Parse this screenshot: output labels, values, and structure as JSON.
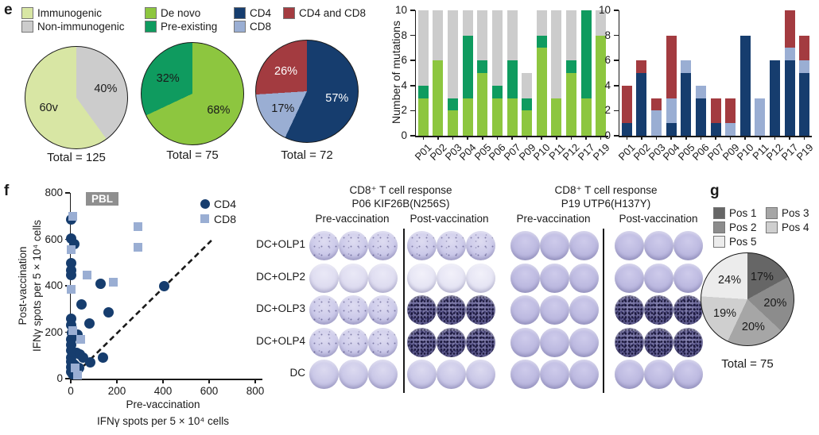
{
  "panels": {
    "e": "e",
    "f": "f",
    "g": "g"
  },
  "colors": {
    "immunogenic": "#d8e6a4",
    "non_immunogenic": "#cccccc",
    "de_novo": "#8dc63f",
    "pre_existing": "#0f9b5f",
    "cd4": "#163d6e",
    "cd8": "#9aaed3",
    "cd4_cd8": "#a33b40",
    "pos1": "#666666",
    "pos2": "#8c8c8c",
    "pos3": "#a6a6a6",
    "pos4": "#cfcfcf",
    "pos5": "#ececec",
    "axis": "#1a1a1a",
    "pbl_badge": "#8f8f8f"
  },
  "legend_e": {
    "columns": [
      [
        {
          "label": "Immunogenic",
          "color_key": "immunogenic"
        },
        {
          "label": "Non-immunogenic",
          "color_key": "non_immunogenic"
        }
      ],
      [
        {
          "label": "De novo",
          "color_key": "de_novo"
        },
        {
          "label": "Pre-existing",
          "color_key": "pre_existing"
        }
      ],
      [
        {
          "label": "CD4",
          "color_key": "cd4"
        },
        {
          "label": "CD8",
          "color_key": "cd8"
        }
      ],
      [
        {
          "label": "CD4 and CD8",
          "color_key": "cd4_cd8"
        }
      ]
    ]
  },
  "chart_data": {
    "pie_immunogenic": {
      "type": "pie",
      "total_label": "Total = 125",
      "slices": [
        {
          "label": "Non-immunogenic",
          "value": 40,
          "display": "40%",
          "color_key": "non_immunogenic",
          "text_color": "#1a1a1a"
        },
        {
          "label": "Immunogenic",
          "value": 60,
          "display": "60v",
          "color_key": "immunogenic",
          "text_color": "#1a1a1a"
        }
      ]
    },
    "pie_origin": {
      "type": "pie",
      "total_label": "Total = 75",
      "slices": [
        {
          "label": "De novo",
          "value": 68,
          "display": "68%",
          "color_key": "de_novo",
          "text_color": "#1a1a1a"
        },
        {
          "label": "Pre-existing",
          "value": 32,
          "display": "32%",
          "color_key": "pre_existing",
          "text_color": "#1a1a1a"
        }
      ]
    },
    "pie_tcell": {
      "type": "pie",
      "total_label": "Total = 72",
      "slices": [
        {
          "label": "CD4",
          "value": 57,
          "display": "57%",
          "color_key": "cd4",
          "text_color": "#ffffff"
        },
        {
          "label": "CD8",
          "value": 17,
          "display": "17%",
          "color_key": "cd8",
          "text_color": "#1a1a1a"
        },
        {
          "label": "CD4 and CD8",
          "value": 26,
          "display": "26%",
          "color_key": "cd4_cd8",
          "text_color": "#ffffff"
        }
      ]
    },
    "bar_left": {
      "type": "bar",
      "stacked": true,
      "ylabel": "Number of mutations",
      "ylim": [
        0,
        10
      ],
      "yticks": [
        0,
        2,
        4,
        6,
        8,
        10
      ],
      "categories": [
        "P01",
        "P02",
        "P03",
        "P04",
        "P05",
        "P06",
        "P07",
        "P09",
        "P10",
        "P11",
        "P12",
        "P17",
        "P19"
      ],
      "series": [
        {
          "name": "De novo",
          "color_key": "de_novo",
          "values": [
            3,
            6,
            2,
            3,
            5,
            3,
            3,
            2,
            7,
            3,
            5,
            3,
            8
          ]
        },
        {
          "name": "Pre-existing",
          "color_key": "pre_existing",
          "values": [
            1,
            0,
            1,
            5,
            1,
            1,
            3,
            1,
            1,
            0,
            1,
            7,
            0
          ]
        },
        {
          "name": "Non-immunogenic",
          "color_key": "non_immunogenic",
          "values": [
            6,
            4,
            7,
            2,
            4,
            6,
            4,
            2,
            2,
            7,
            4,
            0,
            2
          ]
        }
      ]
    },
    "bar_right": {
      "type": "bar",
      "stacked": true,
      "ylabel": "",
      "ylim": [
        0,
        10
      ],
      "yticks": [
        0,
        2,
        4,
        6,
        8,
        10
      ],
      "categories": [
        "P01",
        "P02",
        "P03",
        "P04",
        "P05",
        "P06",
        "P07",
        "P09",
        "P10",
        "P11",
        "P12",
        "P17",
        "P19"
      ],
      "series": [
        {
          "name": "CD4",
          "color_key": "cd4",
          "values": [
            1,
            5,
            0,
            1,
            5,
            3,
            1,
            0,
            8,
            0,
            6,
            6,
            5
          ]
        },
        {
          "name": "CD8",
          "color_key": "cd8",
          "values": [
            0,
            0,
            2,
            2,
            1,
            1,
            0,
            1,
            0,
            3,
            0,
            1,
            1
          ]
        },
        {
          "name": "CD4 and CD8",
          "color_key": "cd4_cd8",
          "values": [
            3,
            1,
            1,
            5,
            0,
            0,
            2,
            2,
            0,
            0,
            0,
            3,
            2
          ]
        }
      ]
    },
    "scatter": {
      "type": "scatter",
      "badge": "PBL",
      "xlabel1": "Pre-vaccination",
      "xlabel2": "IFNγ spots per 5 × 10⁴ cells",
      "ylabel1": "Post-vaccination",
      "ylabel2": "IFNγ spots per 5 × 10⁴ cells",
      "xlim": [
        0,
        800
      ],
      "ylim": [
        0,
        800
      ],
      "xticks": [
        0,
        200,
        400,
        600,
        800
      ],
      "yticks": [
        0,
        200,
        400,
        600,
        800
      ],
      "identity_line": {
        "x1": 0,
        "y1": 0,
        "x2": 610,
        "y2": 595,
        "style": "dashed"
      },
      "series": [
        {
          "name": "CD4",
          "marker": "circle",
          "color_key": "cd4",
          "points": [
            [
              0,
              685
            ],
            [
              0,
              605
            ],
            [
              15,
              580
            ],
            [
              0,
              497
            ],
            [
              2,
              468
            ],
            [
              0,
              445
            ],
            [
              130,
              408
            ],
            [
              405,
              397
            ],
            [
              45,
              320
            ],
            [
              165,
              287
            ],
            [
              0,
              257
            ],
            [
              80,
              237
            ],
            [
              0,
              230
            ],
            [
              5,
              196
            ],
            [
              28,
              190
            ],
            [
              0,
              170
            ],
            [
              0,
              145
            ],
            [
              0,
              120
            ],
            [
              25,
              110
            ],
            [
              40,
              103
            ],
            [
              55,
              92
            ],
            [
              140,
              92
            ],
            [
              0,
              90
            ],
            [
              85,
              70
            ],
            [
              12,
              62
            ],
            [
              20,
              57
            ],
            [
              0,
              75
            ],
            [
              35,
              45
            ],
            [
              0,
              48
            ],
            [
              3,
              30
            ],
            [
              8,
              20
            ]
          ]
        },
        {
          "name": "CD8",
          "marker": "square",
          "color_key": "cd8",
          "points": [
            [
              8,
              700
            ],
            [
              290,
              655
            ],
            [
              290,
              565
            ],
            [
              0,
              557
            ],
            [
              70,
              447
            ],
            [
              185,
              415
            ],
            [
              0,
              383
            ],
            [
              10,
              207
            ],
            [
              42,
              170
            ],
            [
              20,
              45
            ],
            [
              30,
              14
            ]
          ]
        }
      ]
    },
    "elispot": {
      "type": "table",
      "groups": [
        {
          "title1": "CD8⁺ T cell response",
          "title2": "P06 KIF26B(N256S)"
        },
        {
          "title1": "CD8⁺ T cell response",
          "title2": "P19 UTP6(H137Y)"
        }
      ],
      "col_headers": [
        "Pre-vaccination",
        "Post-vaccination",
        "Pre-vaccination",
        "Post-vaccination"
      ],
      "wells_per_group": 3,
      "rows": [
        {
          "label": "DC+OLP1",
          "wells": [
            "light_speckle",
            "light_speckle",
            "medium",
            "medium"
          ]
        },
        {
          "label": "DC+OLP2",
          "wells": [
            "lighter",
            "lightest",
            "medium",
            "medium"
          ]
        },
        {
          "label": "DC+OLP3",
          "wells": [
            "light_speckle",
            "dark",
            "medium",
            "dark"
          ]
        },
        {
          "label": "DC+OLP4",
          "wells": [
            "light_speckle",
            "dark",
            "medium",
            "dark"
          ]
        },
        {
          "label": "DC",
          "wells": [
            "light",
            "light",
            "medium",
            "medium"
          ]
        }
      ]
    },
    "pie_positions": {
      "type": "pie",
      "total_label": "Total = 75",
      "legend_display_order": [
        {
          "label": "Pos 1",
          "color_key": "pos1"
        },
        {
          "label": "Pos 3",
          "color_key": "pos3"
        },
        {
          "label": "Pos 2",
          "color_key": "pos2"
        },
        {
          "label": "Pos 4",
          "color_key": "pos4"
        },
        {
          "label": "Pos 5",
          "color_key": "pos5"
        }
      ],
      "slices": [
        {
          "label": "Pos 1",
          "value": 17,
          "display": "17%",
          "color_key": "pos1",
          "text_color": "#1a1a1a"
        },
        {
          "label": "Pos 2",
          "value": 20,
          "display": "20%",
          "color_key": "pos2",
          "text_color": "#1a1a1a"
        },
        {
          "label": "Pos 3",
          "value": 20,
          "display": "20%",
          "color_key": "pos3",
          "text_color": "#1a1a1a"
        },
        {
          "label": "Pos 4",
          "value": 19,
          "display": "19%",
          "color_key": "pos4",
          "text_color": "#1a1a1a"
        },
        {
          "label": "Pos 5",
          "value": 24,
          "display": "24%",
          "color_key": "pos5",
          "text_color": "#1a1a1a"
        }
      ]
    }
  }
}
